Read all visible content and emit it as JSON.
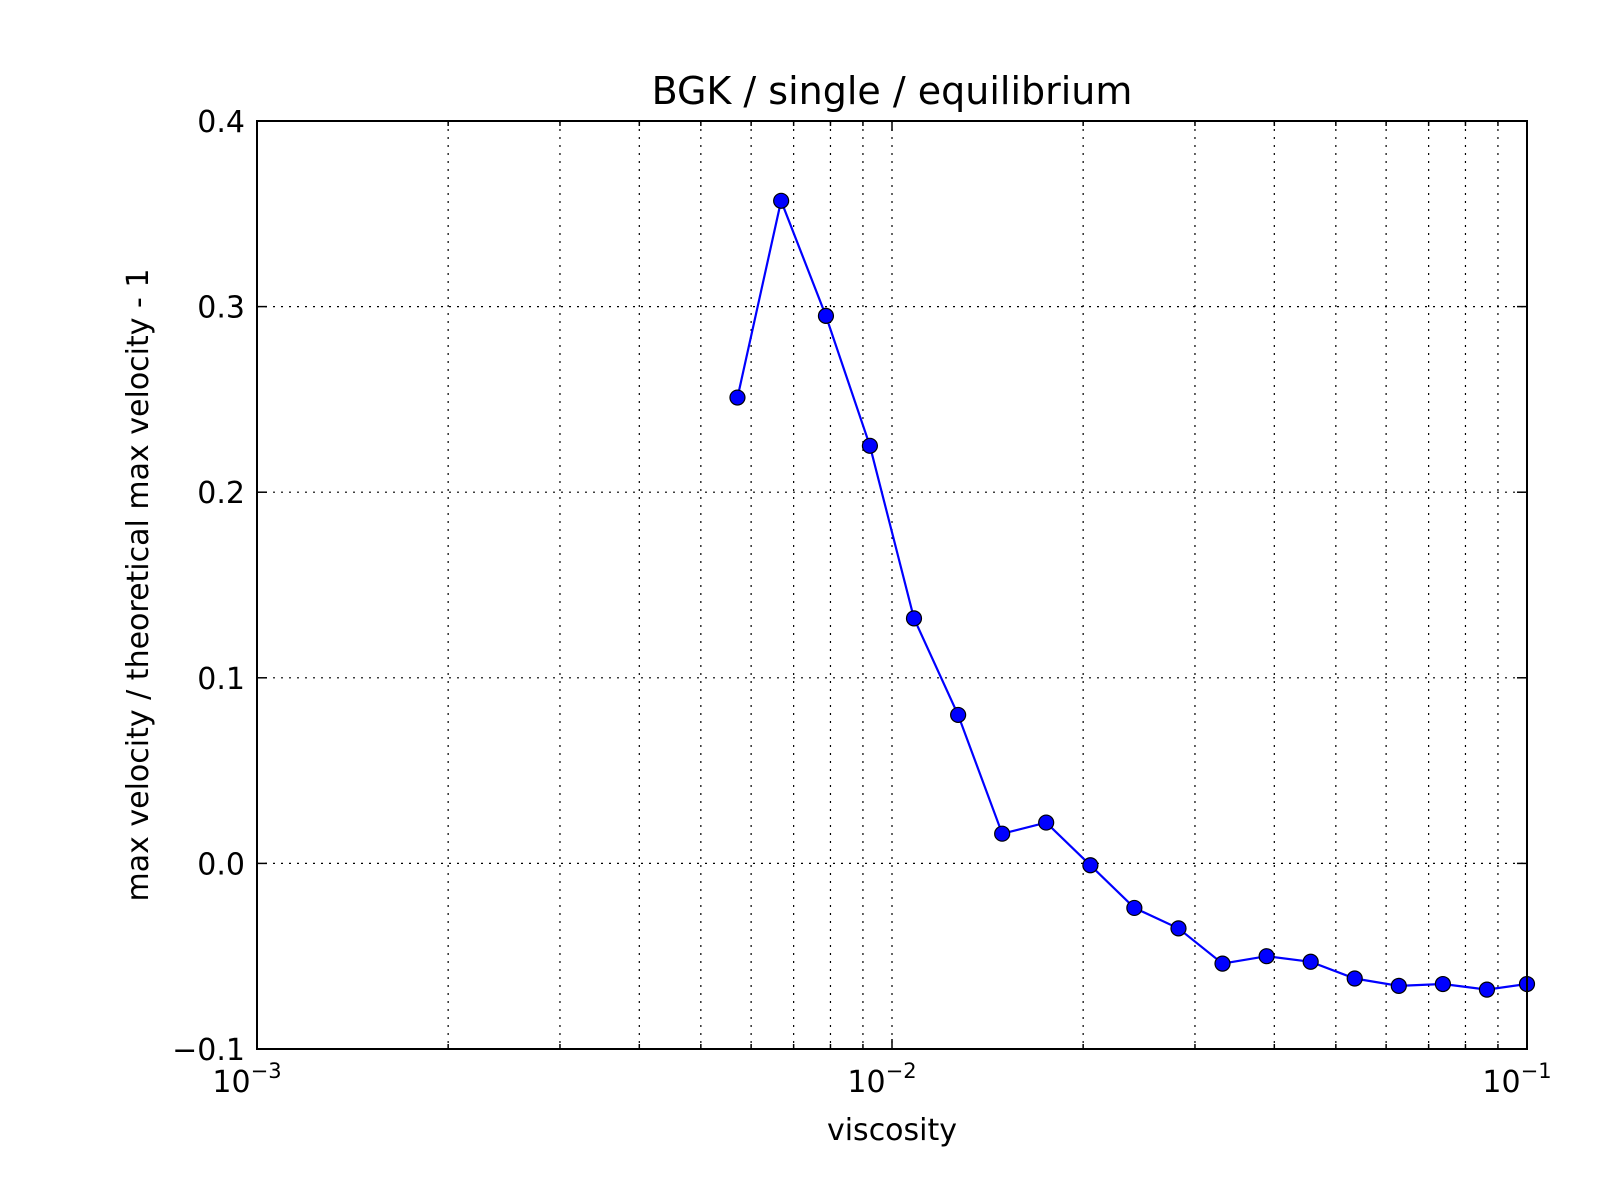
{
  "chart_data": {
    "type": "line",
    "title": "BGK / single / equilibrium",
    "xlabel": "viscosity",
    "ylabel": "max velocity / theoretical max velocity - 1",
    "xscale": "log",
    "xlim": [
      0.001,
      0.1
    ],
    "ylim": [
      -0.1,
      0.4
    ],
    "grid": true,
    "line_color": "#0000ff",
    "marker_color": "#0000ff",
    "x_ticks": [
      {
        "value": 0.001,
        "base": "10",
        "exp": "−3"
      },
      {
        "value": 0.01,
        "base": "10",
        "exp": "−2"
      },
      {
        "value": 0.1,
        "base": "10",
        "exp": "−1"
      }
    ],
    "y_ticks": [
      {
        "value": -0.1,
        "label": "−0.1"
      },
      {
        "value": 0.0,
        "label": "0.0"
      },
      {
        "value": 0.1,
        "label": "0.1"
      },
      {
        "value": 0.2,
        "label": "0.2"
      },
      {
        "value": 0.3,
        "label": "0.3"
      },
      {
        "value": 0.4,
        "label": "0.4"
      }
    ],
    "x": [
      0.00571,
      0.00669,
      0.00787,
      0.00923,
      0.01083,
      0.01271,
      0.01491,
      0.01749,
      0.02053,
      0.02408,
      0.02826,
      0.03315,
      0.0389,
      0.04564,
      0.05354,
      0.06282,
      0.07371,
      0.08648,
      0.1
    ],
    "y": [
      0.251,
      0.357,
      0.295,
      0.225,
      0.132,
      0.08,
      0.016,
      0.022,
      -0.001,
      -0.024,
      -0.035,
      -0.054,
      -0.05,
      -0.053,
      -0.062,
      -0.066,
      -0.065,
      -0.068,
      -0.065
    ]
  }
}
